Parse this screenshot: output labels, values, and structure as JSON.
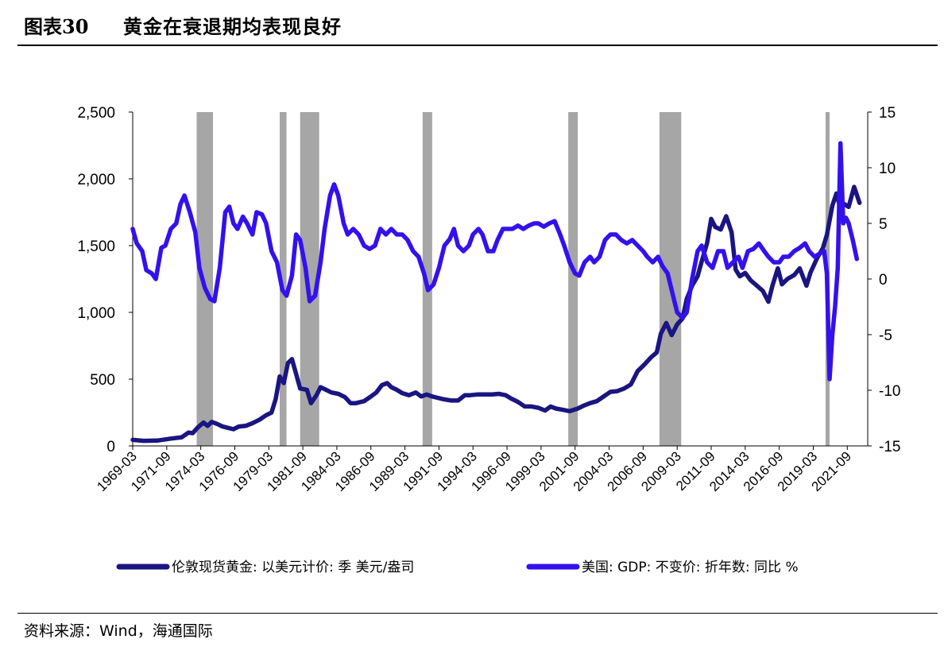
{
  "header": {
    "label": "图表30",
    "title": "黄金在衰退期均表现良好"
  },
  "source": "资料来源：Wind，海通国际",
  "chart_data": {
    "type": "line",
    "left_axis": {
      "min": 0,
      "max": 2500,
      "ticks": [
        0,
        500,
        1000,
        1500,
        2000,
        2500
      ],
      "tick_labels": [
        "0",
        "500",
        "1,000",
        "1,500",
        "2,000",
        "2,500"
      ]
    },
    "right_axis": {
      "min": -15,
      "max": 15,
      "ticks": [
        -15,
        -10,
        -5,
        0,
        5,
        10,
        15
      ],
      "tick_labels": [
        "-15",
        "-10",
        "-5",
        "0",
        "5",
        "10",
        "15"
      ]
    },
    "x_range": [
      1969.2,
      2023.2
    ],
    "x_tick_labels": [
      "1969-03",
      "1971-09",
      "1974-03",
      "1976-09",
      "1979-03",
      "1981-09",
      "1984-03",
      "1986-09",
      "1989-03",
      "1991-09",
      "1994-03",
      "1996-09",
      "1999-03",
      "2001-09",
      "2004-03",
      "2006-09",
      "2009-03",
      "2011-09",
      "2014-03",
      "2016-09",
      "2019-03",
      "2021-09"
    ],
    "recession_bands": [
      [
        1973.9,
        1975.1
      ],
      [
        1980.0,
        1980.5
      ],
      [
        1981.5,
        1982.9
      ],
      [
        1990.5,
        1991.2
      ],
      [
        2001.2,
        2001.9
      ],
      [
        2007.9,
        2009.5
      ],
      [
        2020.1,
        2020.4
      ]
    ],
    "legend_position": "bottom",
    "colors": {
      "gold": "#1a1580",
      "gdp": "#3311ee",
      "recession": "#a6a6a6"
    },
    "series": [
      {
        "name": "伦敦现货黄金: 以美元计价: 季 美元/盎司",
        "axis": "left",
        "color": "#1a1580",
        "points": [
          [
            1969.2,
            45
          ],
          [
            1970.0,
            38
          ],
          [
            1971.0,
            40
          ],
          [
            1972.0,
            55
          ],
          [
            1972.8,
            65
          ],
          [
            1973.3,
            100
          ],
          [
            1973.6,
            95
          ],
          [
            1974.0,
            140
          ],
          [
            1974.4,
            175
          ],
          [
            1974.7,
            150
          ],
          [
            1975.0,
            180
          ],
          [
            1975.4,
            165
          ],
          [
            1975.8,
            145
          ],
          [
            1976.2,
            135
          ],
          [
            1976.6,
            125
          ],
          [
            1977.0,
            145
          ],
          [
            1977.5,
            150
          ],
          [
            1978.0,
            170
          ],
          [
            1978.5,
            195
          ],
          [
            1979.0,
            230
          ],
          [
            1979.4,
            250
          ],
          [
            1979.7,
            350
          ],
          [
            1980.0,
            520
          ],
          [
            1980.3,
            470
          ],
          [
            1980.6,
            620
          ],
          [
            1980.9,
            650
          ],
          [
            1981.2,
            540
          ],
          [
            1981.5,
            430
          ],
          [
            1982.0,
            420
          ],
          [
            1982.3,
            320
          ],
          [
            1982.7,
            380
          ],
          [
            1983.0,
            440
          ],
          [
            1983.4,
            420
          ],
          [
            1983.8,
            400
          ],
          [
            1984.3,
            390
          ],
          [
            1984.8,
            365
          ],
          [
            1985.2,
            320
          ],
          [
            1985.6,
            320
          ],
          [
            1986.2,
            335
          ],
          [
            1986.7,
            370
          ],
          [
            1987.1,
            400
          ],
          [
            1987.5,
            455
          ],
          [
            1987.9,
            470
          ],
          [
            1988.2,
            440
          ],
          [
            1988.6,
            420
          ],
          [
            1989.0,
            395
          ],
          [
            1989.5,
            380
          ],
          [
            1990.0,
            400
          ],
          [
            1990.4,
            370
          ],
          [
            1990.8,
            385
          ],
          [
            1991.2,
            370
          ],
          [
            1991.6,
            360
          ],
          [
            1992.0,
            350
          ],
          [
            1992.6,
            340
          ],
          [
            1993.1,
            340
          ],
          [
            1993.6,
            380
          ],
          [
            1994.0,
            380
          ],
          [
            1994.5,
            385
          ],
          [
            1995.0,
            385
          ],
          [
            1995.6,
            385
          ],
          [
            1996.1,
            390
          ],
          [
            1996.6,
            380
          ],
          [
            1997.0,
            355
          ],
          [
            1997.5,
            330
          ],
          [
            1998.0,
            295
          ],
          [
            1998.5,
            295
          ],
          [
            1999.0,
            285
          ],
          [
            1999.5,
            265
          ],
          [
            1999.9,
            295
          ],
          [
            2000.3,
            280
          ],
          [
            2000.8,
            270
          ],
          [
            2001.3,
            260
          ],
          [
            2001.9,
            280
          ],
          [
            2002.3,
            300
          ],
          [
            2002.8,
            320
          ],
          [
            2003.3,
            335
          ],
          [
            2003.8,
            370
          ],
          [
            2004.3,
            405
          ],
          [
            2004.8,
            410
          ],
          [
            2005.3,
            430
          ],
          [
            2005.8,
            460
          ],
          [
            2006.3,
            560
          ],
          [
            2006.8,
            610
          ],
          [
            2007.3,
            665
          ],
          [
            2007.7,
            700
          ],
          [
            2008.0,
            840
          ],
          [
            2008.4,
            920
          ],
          [
            2008.8,
            830
          ],
          [
            2009.2,
            910
          ],
          [
            2009.6,
            955
          ],
          [
            2009.9,
            1100
          ],
          [
            2010.3,
            1200
          ],
          [
            2010.7,
            1270
          ],
          [
            2011.0,
            1380
          ],
          [
            2011.4,
            1520
          ],
          [
            2011.7,
            1700
          ],
          [
            2012.0,
            1640
          ],
          [
            2012.4,
            1620
          ],
          [
            2012.8,
            1720
          ],
          [
            2013.2,
            1600
          ],
          [
            2013.5,
            1320
          ],
          [
            2013.8,
            1270
          ],
          [
            2014.2,
            1295
          ],
          [
            2014.6,
            1240
          ],
          [
            2015.0,
            1205
          ],
          [
            2015.5,
            1160
          ],
          [
            2015.9,
            1080
          ],
          [
            2016.2,
            1200
          ],
          [
            2016.6,
            1330
          ],
          [
            2016.9,
            1210
          ],
          [
            2017.3,
            1250
          ],
          [
            2017.8,
            1280
          ],
          [
            2018.2,
            1330
          ],
          [
            2018.7,
            1200
          ],
          [
            2019.0,
            1300
          ],
          [
            2019.5,
            1410
          ],
          [
            2019.9,
            1480
          ],
          [
            2020.2,
            1580
          ],
          [
            2020.6,
            1800
          ],
          [
            2020.9,
            1890
          ],
          [
            2021.2,
            1780
          ],
          [
            2021.5,
            1810
          ],
          [
            2021.8,
            1790
          ],
          [
            2022.2,
            1940
          ],
          [
            2022.6,
            1820
          ]
        ]
      },
      {
        "name": "美国: GDP: 不变价: 折年数: 同比 %",
        "axis": "right",
        "color": "#3311ee",
        "points": [
          [
            1969.2,
            4.5
          ],
          [
            1969.5,
            3.2
          ],
          [
            1969.9,
            2.5
          ],
          [
            1970.2,
            0.8
          ],
          [
            1970.6,
            0.5
          ],
          [
            1970.9,
            0.0
          ],
          [
            1971.3,
            2.8
          ],
          [
            1971.6,
            3.0
          ],
          [
            1972.0,
            4.5
          ],
          [
            1972.4,
            5.0
          ],
          [
            1972.7,
            6.7
          ],
          [
            1973.0,
            7.5
          ],
          [
            1973.4,
            6.0
          ],
          [
            1973.8,
            4.2
          ],
          [
            1974.1,
            1.0
          ],
          [
            1974.5,
            -0.8
          ],
          [
            1974.9,
            -1.8
          ],
          [
            1975.2,
            -2.0
          ],
          [
            1975.6,
            1.0
          ],
          [
            1976.0,
            6.0
          ],
          [
            1976.3,
            6.5
          ],
          [
            1976.6,
            5.0
          ],
          [
            1976.9,
            4.5
          ],
          [
            1977.3,
            5.6
          ],
          [
            1977.6,
            5.0
          ],
          [
            1978.0,
            4.0
          ],
          [
            1978.3,
            6.0
          ],
          [
            1978.7,
            5.8
          ],
          [
            1979.0,
            5.0
          ],
          [
            1979.4,
            2.5
          ],
          [
            1979.8,
            1.5
          ],
          [
            1980.2,
            -1.0
          ],
          [
            1980.5,
            -1.5
          ],
          [
            1980.9,
            0.3
          ],
          [
            1981.2,
            4.0
          ],
          [
            1981.5,
            3.5
          ],
          [
            1981.9,
            1.0
          ],
          [
            1982.2,
            -2.0
          ],
          [
            1982.6,
            -1.5
          ],
          [
            1983.0,
            1.5
          ],
          [
            1983.3,
            4.5
          ],
          [
            1983.7,
            7.5
          ],
          [
            1984.0,
            8.5
          ],
          [
            1984.3,
            7.5
          ],
          [
            1984.7,
            5.0
          ],
          [
            1985.0,
            4.0
          ],
          [
            1985.4,
            4.5
          ],
          [
            1985.8,
            4.0
          ],
          [
            1986.2,
            3.0
          ],
          [
            1986.6,
            2.7
          ],
          [
            1987.0,
            3.0
          ],
          [
            1987.4,
            4.5
          ],
          [
            1987.8,
            4.0
          ],
          [
            1988.2,
            4.5
          ],
          [
            1988.6,
            4.0
          ],
          [
            1989.0,
            4.0
          ],
          [
            1989.4,
            3.5
          ],
          [
            1989.8,
            2.5
          ],
          [
            1990.2,
            2.0
          ],
          [
            1990.6,
            0.5
          ],
          [
            1990.9,
            -1.0
          ],
          [
            1991.3,
            -0.5
          ],
          [
            1991.7,
            1.0
          ],
          [
            1992.1,
            3.0
          ],
          [
            1992.5,
            3.6
          ],
          [
            1992.8,
            4.5
          ],
          [
            1993.1,
            3.0
          ],
          [
            1993.5,
            2.5
          ],
          [
            1993.9,
            3.0
          ],
          [
            1994.2,
            4.0
          ],
          [
            1994.6,
            4.5
          ],
          [
            1994.9,
            4.0
          ],
          [
            1995.3,
            2.5
          ],
          [
            1995.7,
            2.5
          ],
          [
            1996.0,
            3.5
          ],
          [
            1996.4,
            4.5
          ],
          [
            1996.8,
            4.5
          ],
          [
            1997.1,
            4.5
          ],
          [
            1997.5,
            4.8
          ],
          [
            1997.9,
            4.5
          ],
          [
            1998.3,
            4.8
          ],
          [
            1998.7,
            5.0
          ],
          [
            1999.0,
            5.0
          ],
          [
            1999.4,
            4.7
          ],
          [
            1999.8,
            5.0
          ],
          [
            2000.2,
            5.2
          ],
          [
            2000.6,
            4.0
          ],
          [
            2000.9,
            3.0
          ],
          [
            2001.3,
            1.5
          ],
          [
            2001.7,
            0.5
          ],
          [
            2002.0,
            0.3
          ],
          [
            2002.4,
            1.5
          ],
          [
            2002.8,
            2.0
          ],
          [
            2003.1,
            1.5
          ],
          [
            2003.5,
            2.0
          ],
          [
            2003.9,
            3.5
          ],
          [
            2004.3,
            4.0
          ],
          [
            2004.7,
            4.0
          ],
          [
            2005.1,
            3.5
          ],
          [
            2005.5,
            3.2
          ],
          [
            2005.9,
            3.5
          ],
          [
            2006.3,
            3.0
          ],
          [
            2006.7,
            2.5
          ],
          [
            2007.0,
            2.0
          ],
          [
            2007.4,
            1.5
          ],
          [
            2007.8,
            2.0
          ],
          [
            2008.1,
            1.2
          ],
          [
            2008.5,
            0.5
          ],
          [
            2008.9,
            -1.5
          ],
          [
            2009.2,
            -3.0
          ],
          [
            2009.6,
            -3.5
          ],
          [
            2009.9,
            -3.0
          ],
          [
            2010.3,
            0.0
          ],
          [
            2010.7,
            2.5
          ],
          [
            2011.0,
            3.0
          ],
          [
            2011.4,
            1.5
          ],
          [
            2011.8,
            1.0
          ],
          [
            2012.2,
            2.5
          ],
          [
            2012.6,
            2.5
          ],
          [
            2012.9,
            1.0
          ],
          [
            2013.3,
            1.5
          ],
          [
            2013.7,
            2.0
          ],
          [
            2014.0,
            1.0
          ],
          [
            2014.4,
            2.5
          ],
          [
            2014.8,
            2.7
          ],
          [
            2015.2,
            3.2
          ],
          [
            2015.6,
            2.5
          ],
          [
            2015.9,
            2.0
          ],
          [
            2016.3,
            1.5
          ],
          [
            2016.7,
            1.5
          ],
          [
            2017.0,
            2.0
          ],
          [
            2017.4,
            2.0
          ],
          [
            2017.8,
            2.5
          ],
          [
            2018.2,
            2.8
          ],
          [
            2018.6,
            3.2
          ],
          [
            2018.9,
            2.5
          ],
          [
            2019.3,
            2.0
          ],
          [
            2019.7,
            2.3
          ],
          [
            2020.0,
            2.5
          ],
          [
            2020.2,
            0.5
          ],
          [
            2020.4,
            -9.0
          ],
          [
            2020.6,
            -5.0
          ],
          [
            2020.8,
            -2.5
          ],
          [
            2021.0,
            1.0
          ],
          [
            2021.2,
            12.2
          ],
          [
            2021.4,
            5.0
          ],
          [
            2021.6,
            5.5
          ],
          [
            2021.8,
            5.0
          ],
          [
            2022.1,
            3.5
          ],
          [
            2022.4,
            1.8
          ]
        ]
      }
    ]
  }
}
